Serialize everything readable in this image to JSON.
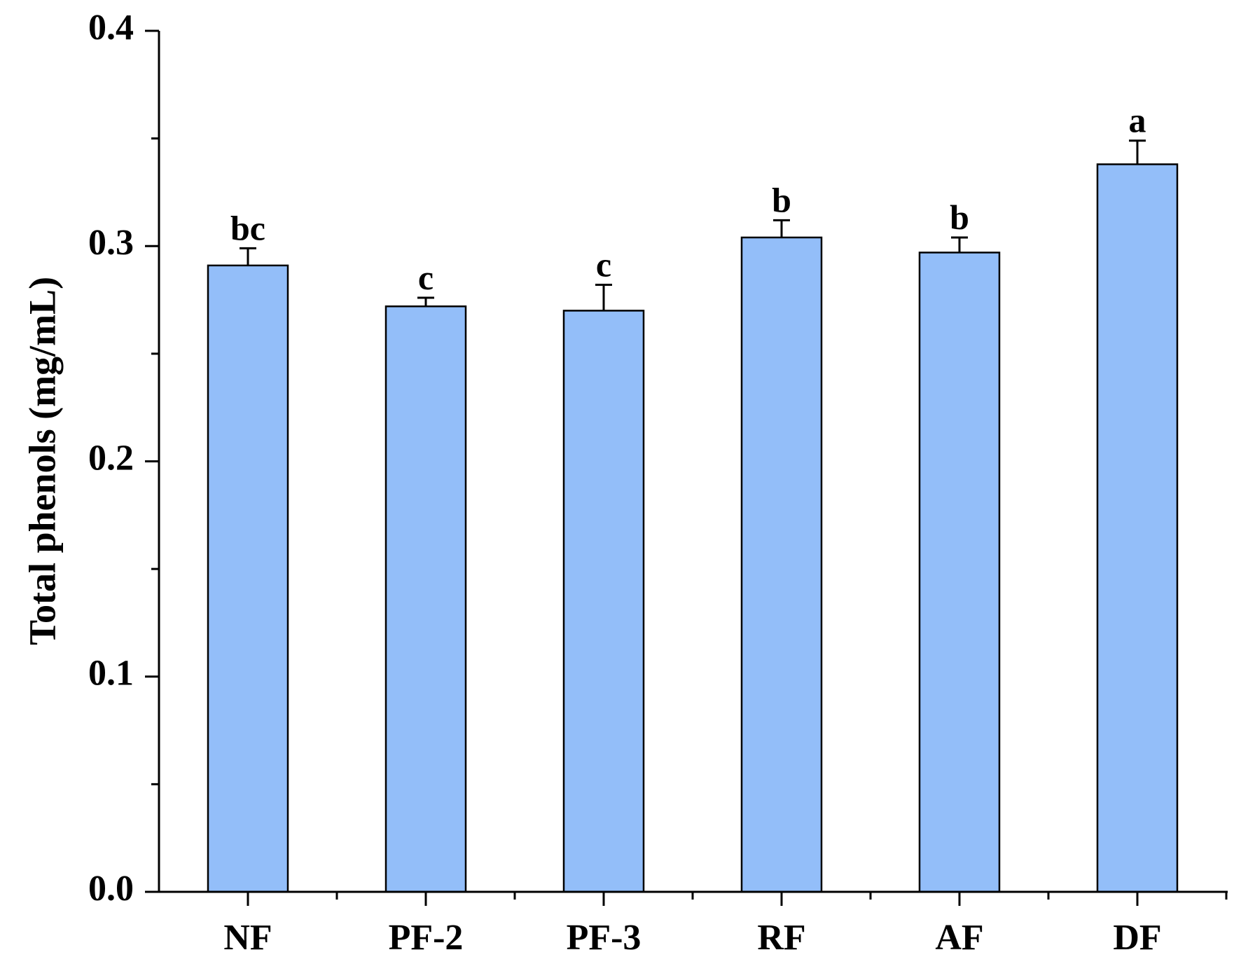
{
  "chart_data": {
    "type": "bar",
    "title": "",
    "xlabel": "",
    "ylabel": "Total phenols (mg/mL)",
    "ylim": [
      0.0,
      0.4
    ],
    "yticks": [
      "0.0",
      "0.1",
      "0.2",
      "0.3",
      "0.4"
    ],
    "categories": [
      "NF",
      "PF-2",
      "PF-3",
      "RF",
      "AF",
      "DF"
    ],
    "values": [
      0.291,
      0.272,
      0.27,
      0.304,
      0.297,
      0.338
    ],
    "errors": [
      0.008,
      0.004,
      0.012,
      0.008,
      0.007,
      0.011
    ],
    "significance_labels": [
      "bc",
      "c",
      "c",
      "b",
      "b",
      "a"
    ],
    "bar_color": "#93bef9",
    "grid": false,
    "legend": "none"
  }
}
